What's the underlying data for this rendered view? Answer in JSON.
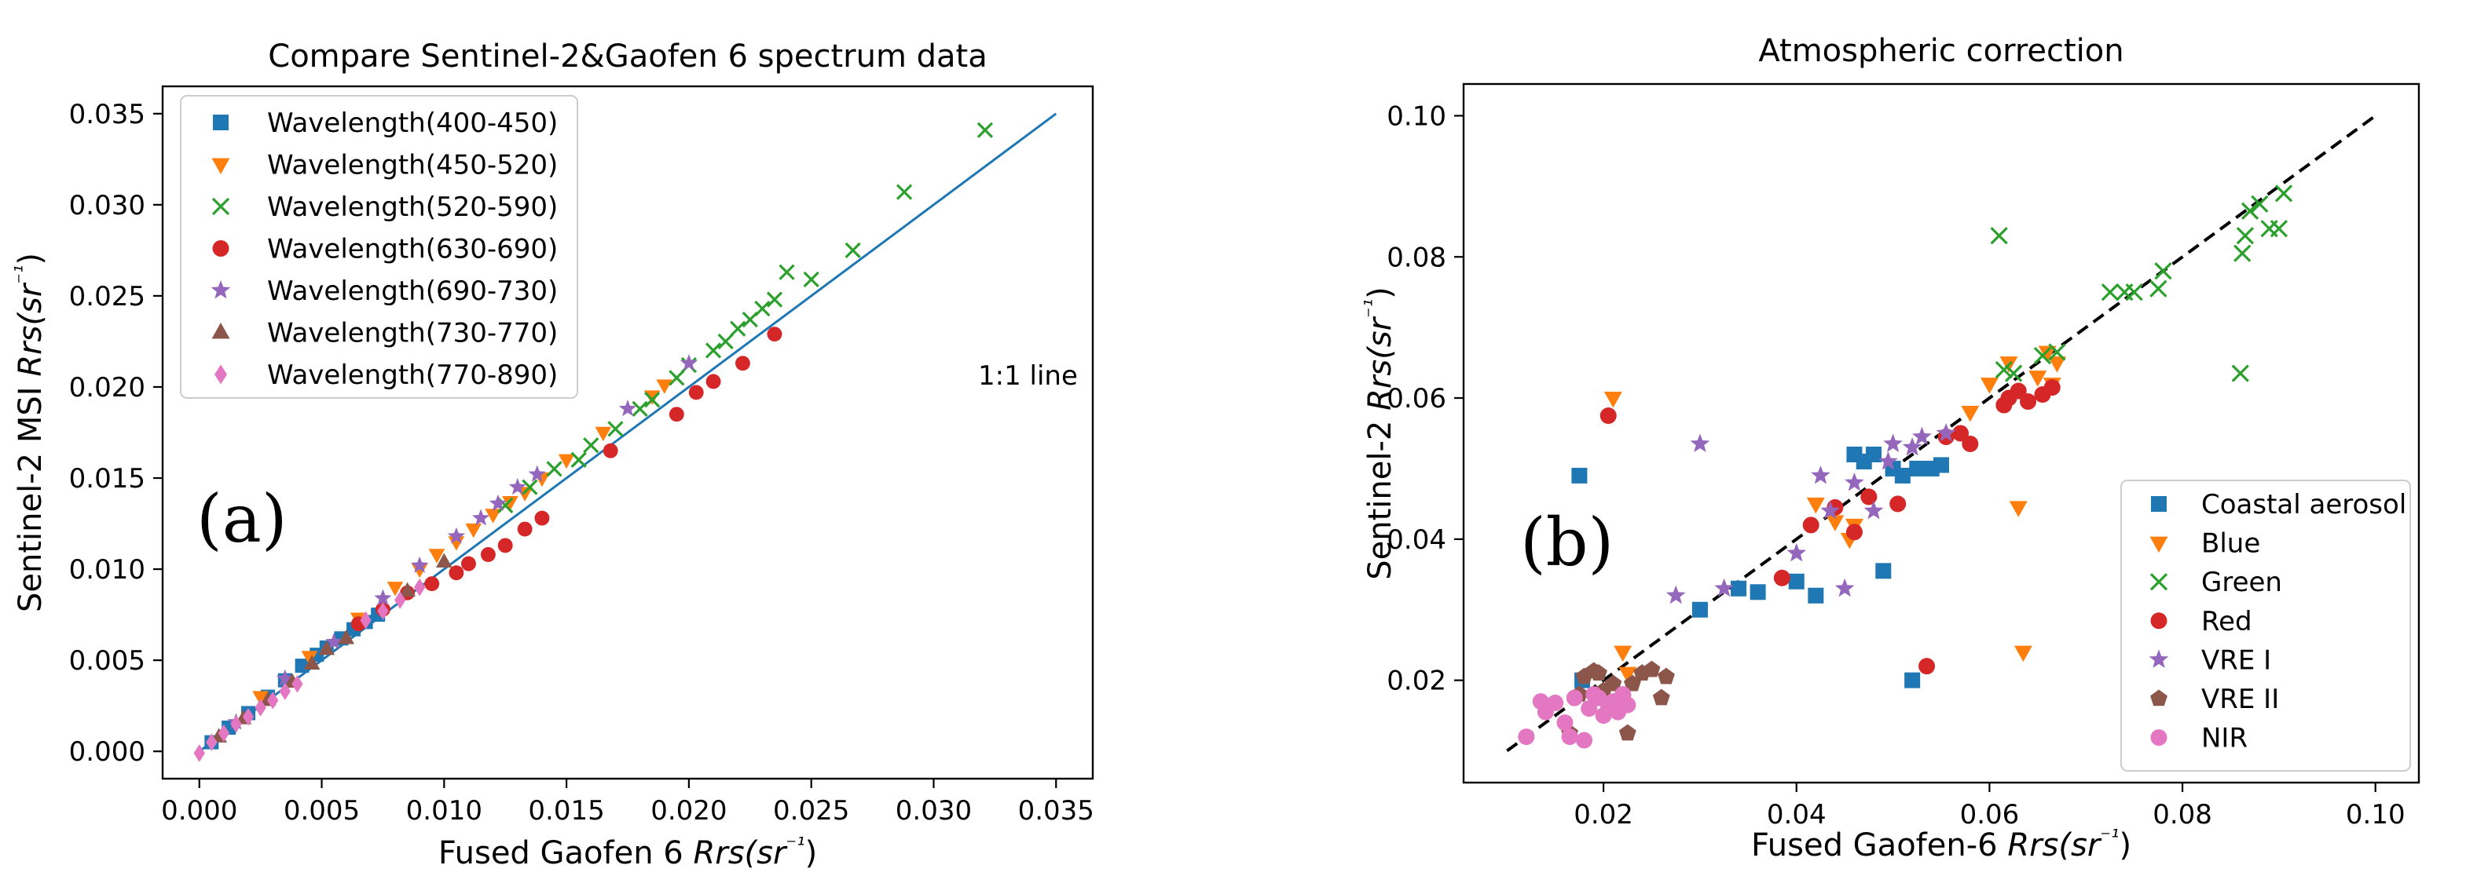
{
  "chart_data": [
    {
      "type": "scatter",
      "title": "Compare Sentinel-2&Gaofen 6 spectrum data",
      "xlabel": "Fused Gaofen 6 Rrs(sr⁻¹)",
      "ylabel": "Sentinel-2 MSI Rrs(sr⁻¹)",
      "xlim": [
        -0.0015,
        0.0365
      ],
      "ylim": [
        -0.0015,
        0.0365
      ],
      "xticks": [
        0,
        0.005,
        0.01,
        0.015,
        0.02,
        0.025,
        0.03,
        0.035
      ],
      "xtick_labels": [
        "0.000",
        "0.005",
        "0.010",
        "0.015",
        "0.020",
        "0.025",
        "0.030",
        "0.035"
      ],
      "yticks": [
        0,
        0.005,
        0.01,
        0.015,
        0.02,
        0.025,
        0.03,
        0.035
      ],
      "ytick_labels": [
        "0.000",
        "0.005",
        "0.010",
        "0.015",
        "0.020",
        "0.025",
        "0.030",
        "0.035"
      ],
      "grid": false,
      "legend_position": "top-left",
      "panel_label": "(a)",
      "annotation": "1:1 line",
      "reference_line": {
        "x": [
          0,
          0.035
        ],
        "y": [
          0,
          0.035
        ],
        "color": "#1f77b4",
        "style": "solid"
      },
      "series": [
        {
          "name": "Wavelength(400-450)",
          "marker": "square",
          "color": "#1f77b4",
          "x": [
            0.0005,
            0.0012,
            0.002,
            0.0028,
            0.0035,
            0.0042,
            0.0048,
            0.0052,
            0.0058,
            0.0063,
            0.0068,
            0.0073
          ],
          "y": [
            0.0005,
            0.0013,
            0.0021,
            0.003,
            0.0039,
            0.0047,
            0.0053,
            0.0057,
            0.0062,
            0.0067,
            0.0071,
            0.0075
          ]
        },
        {
          "name": "Wavelength(450-520)",
          "marker": "triangle-down",
          "color": "#ff7f0e",
          "x": [
            0.0025,
            0.0045,
            0.0065,
            0.008,
            0.009,
            0.0097,
            0.0105,
            0.0112,
            0.012,
            0.0127,
            0.0133,
            0.014,
            0.015,
            0.0165,
            0.0185,
            0.019
          ],
          "y": [
            0.003,
            0.0052,
            0.0073,
            0.009,
            0.01,
            0.0108,
            0.0115,
            0.0122,
            0.013,
            0.0137,
            0.0142,
            0.015,
            0.016,
            0.0175,
            0.0195,
            0.0201
          ]
        },
        {
          "name": "Wavelength(520-590)",
          "marker": "x",
          "color": "#2ca02c",
          "x": [
            0.0125,
            0.0135,
            0.0145,
            0.0155,
            0.016,
            0.017,
            0.018,
            0.0185,
            0.0195,
            0.02,
            0.021,
            0.0215,
            0.022,
            0.0225,
            0.023,
            0.0235,
            0.024,
            0.025,
            0.0267,
            0.0288,
            0.0321
          ],
          "y": [
            0.0135,
            0.0145,
            0.0155,
            0.016,
            0.0168,
            0.0177,
            0.0188,
            0.0193,
            0.0205,
            0.0212,
            0.022,
            0.0225,
            0.0232,
            0.0237,
            0.0243,
            0.0248,
            0.0263,
            0.0259,
            0.0275,
            0.0307,
            0.0341
          ]
        },
        {
          "name": "Wavelength(630-690)",
          "marker": "circle",
          "color": "#d62728",
          "x": [
            0.0065,
            0.0075,
            0.0085,
            0.0095,
            0.0105,
            0.011,
            0.0118,
            0.0125,
            0.0133,
            0.014,
            0.0168,
            0.0195,
            0.0203,
            0.021,
            0.0222,
            0.0235
          ],
          "y": [
            0.007,
            0.0078,
            0.0087,
            0.0092,
            0.0098,
            0.0103,
            0.0108,
            0.0113,
            0.0122,
            0.0128,
            0.0165,
            0.0185,
            0.0197,
            0.0203,
            0.0213,
            0.0229
          ]
        },
        {
          "name": "Wavelength(690-730)",
          "marker": "star",
          "color": "#9467bd",
          "x": [
            0.0015,
            0.0035,
            0.0055,
            0.0075,
            0.009,
            0.0105,
            0.0115,
            0.0122,
            0.013,
            0.0138,
            0.0175,
            0.02
          ],
          "y": [
            0.0016,
            0.004,
            0.006,
            0.0084,
            0.0102,
            0.0118,
            0.0128,
            0.0136,
            0.0145,
            0.0152,
            0.0188,
            0.0213
          ]
        },
        {
          "name": "Wavelength(730-770)",
          "marker": "triangle-up",
          "color": "#8c564b",
          "x": [
            0.0008,
            0.0018,
            0.0028,
            0.0038,
            0.0046,
            0.0052,
            0.006,
            0.0085,
            0.01
          ],
          "y": [
            0.0008,
            0.0018,
            0.0028,
            0.0038,
            0.0048,
            0.0056,
            0.0062,
            0.0088,
            0.0104
          ]
        },
        {
          "name": "Wavelength(770-890)",
          "marker": "diamond",
          "color": "#e377c2",
          "x": [
            0.0,
            0.0005,
            0.001,
            0.0015,
            0.002,
            0.0025,
            0.003,
            0.0035,
            0.004,
            0.0068,
            0.0075,
            0.0082,
            0.009
          ],
          "y": [
            -0.0001,
            0.0005,
            0.001,
            0.0015,
            0.0019,
            0.0024,
            0.0028,
            0.0033,
            0.0037,
            0.0072,
            0.0077,
            0.0083,
            0.009
          ]
        }
      ]
    },
    {
      "type": "scatter",
      "title": "Atmospheric correction",
      "xlabel": "Fused Gaofen-6 Rrs(sr⁻¹)",
      "ylabel": "Sentinel-2 Rrs(sr⁻¹)",
      "xlim": [
        0.0055,
        0.1045
      ],
      "ylim": [
        0.0055,
        0.1045
      ],
      "xticks": [
        0.02,
        0.04,
        0.06,
        0.08,
        0.1
      ],
      "xtick_labels": [
        "0.02",
        "0.04",
        "0.06",
        "0.08",
        "0.10"
      ],
      "yticks": [
        0.02,
        0.04,
        0.06,
        0.08,
        0.1
      ],
      "ytick_labels": [
        "0.02",
        "0.04",
        "0.06",
        "0.08",
        "0.10"
      ],
      "grid": false,
      "legend_position": "bottom-right",
      "panel_label": "(b)",
      "reference_line": {
        "x": [
          0.01,
          0.1
        ],
        "y": [
          0.01,
          0.1
        ],
        "color": "#000000",
        "style": "dashed"
      },
      "series": [
        {
          "name": "Coastal aerosol",
          "marker": "square",
          "color": "#1f77b4",
          "x": [
            0.0175,
            0.0178,
            0.03,
            0.034,
            0.036,
            0.04,
            0.042,
            0.046,
            0.047,
            0.048,
            0.049,
            0.05,
            0.051,
            0.052,
            0.0525,
            0.054,
            0.055
          ],
          "y": [
            0.049,
            0.02,
            0.03,
            0.033,
            0.0325,
            0.034,
            0.032,
            0.052,
            0.051,
            0.052,
            0.0355,
            0.05,
            0.049,
            0.02,
            0.05,
            0.05,
            0.0505
          ]
        },
        {
          "name": "Blue",
          "marker": "triangle-down",
          "color": "#ff7f0e",
          "x": [
            0.021,
            0.022,
            0.0225,
            0.042,
            0.044,
            0.0455,
            0.046,
            0.058,
            0.06,
            0.062,
            0.063,
            0.0635,
            0.065,
            0.066,
            0.0665,
            0.067
          ],
          "y": [
            0.06,
            0.024,
            0.021,
            0.045,
            0.0425,
            0.04,
            0.042,
            0.058,
            0.062,
            0.065,
            0.0445,
            0.024,
            0.063,
            0.0665,
            0.062,
            0.065
          ]
        },
        {
          "name": "Green",
          "marker": "x",
          "color": "#2ca02c",
          "x": [
            0.061,
            0.0615,
            0.0625,
            0.0655,
            0.067,
            0.0725,
            0.074,
            0.075,
            0.0775,
            0.078,
            0.086,
            0.0862,
            0.0865,
            0.087,
            0.088,
            0.089,
            0.09,
            0.0905
          ],
          "y": [
            0.083,
            0.064,
            0.0635,
            0.066,
            0.0665,
            0.075,
            0.075,
            0.075,
            0.0755,
            0.078,
            0.0635,
            0.0805,
            0.083,
            0.0865,
            0.0875,
            0.084,
            0.084,
            0.089
          ]
        },
        {
          "name": "Red",
          "marker": "circle",
          "color": "#d62728",
          "x": [
            0.0205,
            0.0385,
            0.0415,
            0.044,
            0.046,
            0.0475,
            0.0505,
            0.0535,
            0.0555,
            0.057,
            0.058,
            0.0615,
            0.062,
            0.063,
            0.064,
            0.0655,
            0.0665
          ],
          "y": [
            0.0575,
            0.0345,
            0.042,
            0.0445,
            0.041,
            0.046,
            0.045,
            0.022,
            0.0545,
            0.055,
            0.0535,
            0.059,
            0.06,
            0.061,
            0.0595,
            0.0605,
            0.0615
          ]
        },
        {
          "name": "VRE I",
          "marker": "star",
          "color": "#9467bd",
          "x": [
            0.0275,
            0.03,
            0.0325,
            0.04,
            0.0425,
            0.0435,
            0.045,
            0.046,
            0.048,
            0.0495,
            0.05,
            0.052,
            0.053,
            0.0555
          ],
          "y": [
            0.032,
            0.0535,
            0.033,
            0.038,
            0.049,
            0.044,
            0.033,
            0.048,
            0.044,
            0.051,
            0.0535,
            0.053,
            0.0545,
            0.055
          ]
        },
        {
          "name": "VRE II",
          "marker": "pentagon",
          "color": "#8c564b",
          "x": [
            0.0165,
            0.0175,
            0.018,
            0.019,
            0.0195,
            0.02,
            0.021,
            0.022,
            0.0225,
            0.023,
            0.024,
            0.025,
            0.026,
            0.0265
          ],
          "y": [
            0.0125,
            0.018,
            0.0205,
            0.0213,
            0.021,
            0.0185,
            0.0195,
            0.0175,
            0.0125,
            0.0195,
            0.021,
            0.0215,
            0.0175,
            0.0205
          ]
        },
        {
          "name": "NIR",
          "marker": "circle",
          "color": "#e377c2",
          "x": [
            0.012,
            0.0135,
            0.014,
            0.015,
            0.016,
            0.0165,
            0.017,
            0.018,
            0.0185,
            0.019,
            0.0195,
            0.02,
            0.0205,
            0.021,
            0.0215,
            0.022,
            0.0225
          ],
          "y": [
            0.012,
            0.017,
            0.0155,
            0.0168,
            0.014,
            0.012,
            0.0175,
            0.0115,
            0.016,
            0.018,
            0.0175,
            0.015,
            0.016,
            0.017,
            0.0155,
            0.018,
            0.0165
          ]
        }
      ]
    }
  ]
}
